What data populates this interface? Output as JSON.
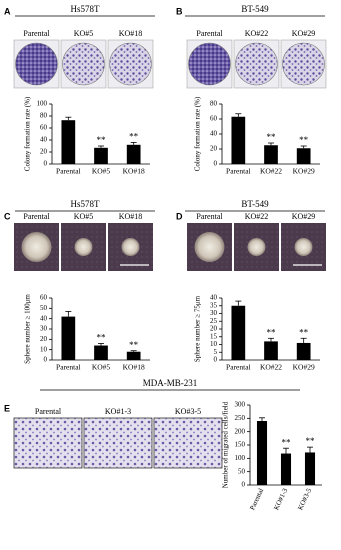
{
  "chart_data": [
    {
      "type": "bar",
      "panel": "A",
      "title": "Hs578T",
      "image_labels": [
        "Parental",
        "KO#5",
        "KO#18"
      ],
      "y_label": "Colony formation rate (%)",
      "categories": [
        "Parental",
        "KO#5",
        "KO#18"
      ],
      "values": [
        73,
        27,
        32
      ],
      "errors": [
        5,
        3,
        4
      ],
      "annotations": [
        null,
        "**",
        "**"
      ],
      "color": "#000000",
      "ylim": [
        0,
        100
      ],
      "yticks": [
        0,
        20,
        40,
        60,
        80,
        100
      ]
    },
    {
      "type": "bar",
      "panel": "B",
      "title": "BT-549",
      "image_labels": [
        "Parental",
        "KO#22",
        "KO#29"
      ],
      "y_label": "Colony formation rate (%)",
      "categories": [
        "Parental",
        "KO#22",
        "KO#29"
      ],
      "values": [
        63,
        25,
        21
      ],
      "errors": [
        4,
        3,
        3
      ],
      "annotations": [
        null,
        "**",
        "**"
      ],
      "color": "#000000",
      "ylim": [
        0,
        80
      ],
      "yticks": [
        0,
        20,
        40,
        60,
        80
      ]
    },
    {
      "type": "bar",
      "panel": "C",
      "title": "Hs578T",
      "image_labels": [
        "Parental",
        "KO#5",
        "KO#18"
      ],
      "y_label": "Sphere number ≥ 100μm",
      "categories": [
        "Parental",
        "KO#5",
        "KO#18"
      ],
      "values": [
        42,
        14,
        8
      ],
      "errors": [
        5,
        2,
        1
      ],
      "annotations": [
        null,
        "**",
        "**"
      ],
      "color": "#000000",
      "ylim": [
        0,
        60
      ],
      "yticks": [
        0,
        10,
        20,
        30,
        40,
        50,
        60
      ]
    },
    {
      "type": "bar",
      "panel": "D",
      "title": "BT-549",
      "image_labels": [
        "Parental",
        "KO#22",
        "KO#29"
      ],
      "y_label": "Sphere number ≥ 75μm",
      "categories": [
        "Parental",
        "KO#22",
        "KO#29"
      ],
      "values": [
        35,
        12,
        11
      ],
      "errors": [
        3,
        2,
        3
      ],
      "annotations": [
        null,
        "**",
        "**"
      ],
      "color": "#000000",
      "ylim": [
        0,
        40
      ],
      "yticks": [
        0,
        5,
        10,
        15,
        20,
        25,
        30,
        35,
        40
      ]
    },
    {
      "type": "bar",
      "panel": "E",
      "title": "MDA-MB-231",
      "image_labels": [
        "Parental",
        "KO#1-3",
        "KO#3-5"
      ],
      "y_label": "Number of migrated cells/field",
      "categories": [
        "Parental",
        "KO#1-3",
        "KO#3-5"
      ],
      "values": [
        240,
        118,
        122
      ],
      "errors": [
        12,
        20,
        20
      ],
      "annotations": [
        null,
        "**",
        "**"
      ],
      "color": "#000000",
      "ylim": [
        0,
        300
      ],
      "yticks": [
        0,
        50,
        100,
        150,
        200,
        250,
        300
      ]
    }
  ]
}
